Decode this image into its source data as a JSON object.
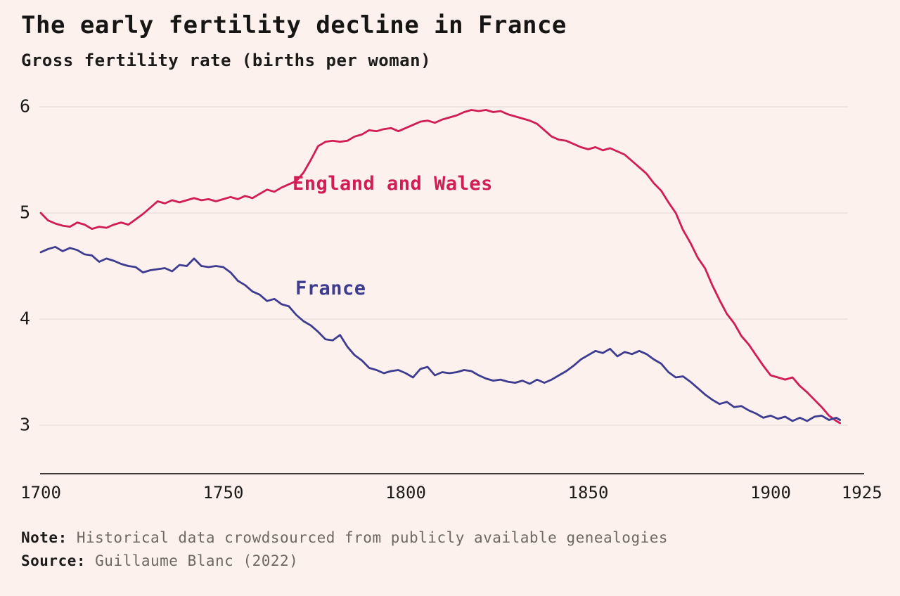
{
  "header": {
    "title": "The early fertility decline in France",
    "subtitle": "Gross fertility rate (births per woman)"
  },
  "footer": {
    "note_label": "Note:",
    "note_text": " Historical data crowdsourced from publicly available genealogies",
    "source_label": "Source:",
    "source_text": " Guillaume Blanc (2022)"
  },
  "colors": {
    "background": "#fcf1ed",
    "gridline": "#efe4e0",
    "axis_line": "#403a36",
    "text_dark": "#1d1b1a",
    "text_gray": "#6e6862",
    "england_red": "#d11d53",
    "france_blue": "#3e3c90"
  },
  "chart_data": {
    "type": "line",
    "title": "The early fertility decline in France",
    "subtitle": "Gross fertility rate (births per woman)",
    "xlabel": "",
    "ylabel": "Gross fertility rate (births per woman)",
    "xlim": [
      1700,
      1925
    ],
    "ylim": [
      2.6,
      6.3
    ],
    "x_ticks": [
      1700,
      1750,
      1800,
      1850,
      1900,
      1925
    ],
    "y_ticks": [
      3,
      4,
      5,
      6
    ],
    "grid": "horizontal-only",
    "legend": "inline-labels",
    "years": [
      1700,
      1702,
      1704,
      1706,
      1708,
      1710,
      1712,
      1714,
      1716,
      1718,
      1720,
      1722,
      1724,
      1726,
      1728,
      1730,
      1732,
      1734,
      1736,
      1738,
      1740,
      1742,
      1744,
      1746,
      1748,
      1750,
      1752,
      1754,
      1756,
      1758,
      1760,
      1762,
      1764,
      1766,
      1768,
      1770,
      1772,
      1774,
      1776,
      1778,
      1780,
      1782,
      1784,
      1786,
      1788,
      1790,
      1792,
      1794,
      1796,
      1798,
      1800,
      1802,
      1804,
      1806,
      1808,
      1810,
      1812,
      1814,
      1816,
      1818,
      1820,
      1822,
      1824,
      1826,
      1828,
      1830,
      1832,
      1834,
      1836,
      1838,
      1840,
      1842,
      1844,
      1846,
      1848,
      1850,
      1852,
      1854,
      1856,
      1858,
      1860,
      1862,
      1864,
      1866,
      1868,
      1870,
      1872,
      1874,
      1876,
      1878,
      1880,
      1882,
      1884,
      1886,
      1888,
      1890,
      1892,
      1894,
      1896,
      1898,
      1900,
      1902,
      1904,
      1906,
      1908,
      1910,
      1912,
      1914,
      1916,
      1918,
      1919
    ],
    "series": [
      {
        "name": "England and Wales",
        "color": "#d11d53",
        "values": [
          5.0,
          4.93,
          4.9,
          4.88,
          4.87,
          4.91,
          4.89,
          4.85,
          4.87,
          4.86,
          4.89,
          4.91,
          4.89,
          4.94,
          4.99,
          5.05,
          5.11,
          5.09,
          5.12,
          5.1,
          5.12,
          5.14,
          5.12,
          5.13,
          5.11,
          5.13,
          5.15,
          5.13,
          5.16,
          5.14,
          5.18,
          5.22,
          5.2,
          5.24,
          5.27,
          5.3,
          5.38,
          5.5,
          5.63,
          5.67,
          5.68,
          5.67,
          5.68,
          5.72,
          5.74,
          5.78,
          5.77,
          5.79,
          5.8,
          5.77,
          5.8,
          5.83,
          5.86,
          5.87,
          5.85,
          5.88,
          5.9,
          5.92,
          5.95,
          5.97,
          5.96,
          5.97,
          5.95,
          5.96,
          5.93,
          5.91,
          5.89,
          5.87,
          5.84,
          5.78,
          5.72,
          5.69,
          5.68,
          5.65,
          5.62,
          5.6,
          5.62,
          5.59,
          5.61,
          5.58,
          5.55,
          5.49,
          5.43,
          5.37,
          5.28,
          5.21,
          5.1,
          5.0,
          4.84,
          4.72,
          4.58,
          4.48,
          4.32,
          4.18,
          4.05,
          3.96,
          3.84,
          3.76,
          3.66,
          3.56,
          3.47,
          3.45,
          3.43,
          3.45,
          3.37,
          3.31,
          3.24,
          3.17,
          3.09,
          3.04,
          3.02
        ]
      },
      {
        "name": "France",
        "color": "#3e3c90",
        "values": [
          4.63,
          4.66,
          4.68,
          4.64,
          4.67,
          4.65,
          4.61,
          4.6,
          4.54,
          4.57,
          4.55,
          4.52,
          4.5,
          4.49,
          4.44,
          4.46,
          4.47,
          4.48,
          4.45,
          4.51,
          4.5,
          4.57,
          4.5,
          4.49,
          4.5,
          4.49,
          4.44,
          4.36,
          4.32,
          4.26,
          4.23,
          4.17,
          4.19,
          4.14,
          4.12,
          4.04,
          3.98,
          3.94,
          3.88,
          3.81,
          3.8,
          3.85,
          3.74,
          3.66,
          3.61,
          3.54,
          3.52,
          3.49,
          3.51,
          3.52,
          3.49,
          3.45,
          3.53,
          3.55,
          3.47,
          3.5,
          3.49,
          3.5,
          3.52,
          3.51,
          3.47,
          3.44,
          3.42,
          3.43,
          3.41,
          3.4,
          3.42,
          3.39,
          3.43,
          3.4,
          3.43,
          3.47,
          3.51,
          3.56,
          3.62,
          3.66,
          3.7,
          3.68,
          3.72,
          3.65,
          3.69,
          3.67,
          3.7,
          3.67,
          3.62,
          3.58,
          3.5,
          3.45,
          3.46,
          3.41,
          3.35,
          3.29,
          3.24,
          3.2,
          3.22,
          3.17,
          3.18,
          3.14,
          3.11,
          3.07,
          3.09,
          3.06,
          3.08,
          3.04,
          3.07,
          3.04,
          3.08,
          3.09,
          3.05,
          3.07,
          3.05
        ]
      }
    ]
  }
}
